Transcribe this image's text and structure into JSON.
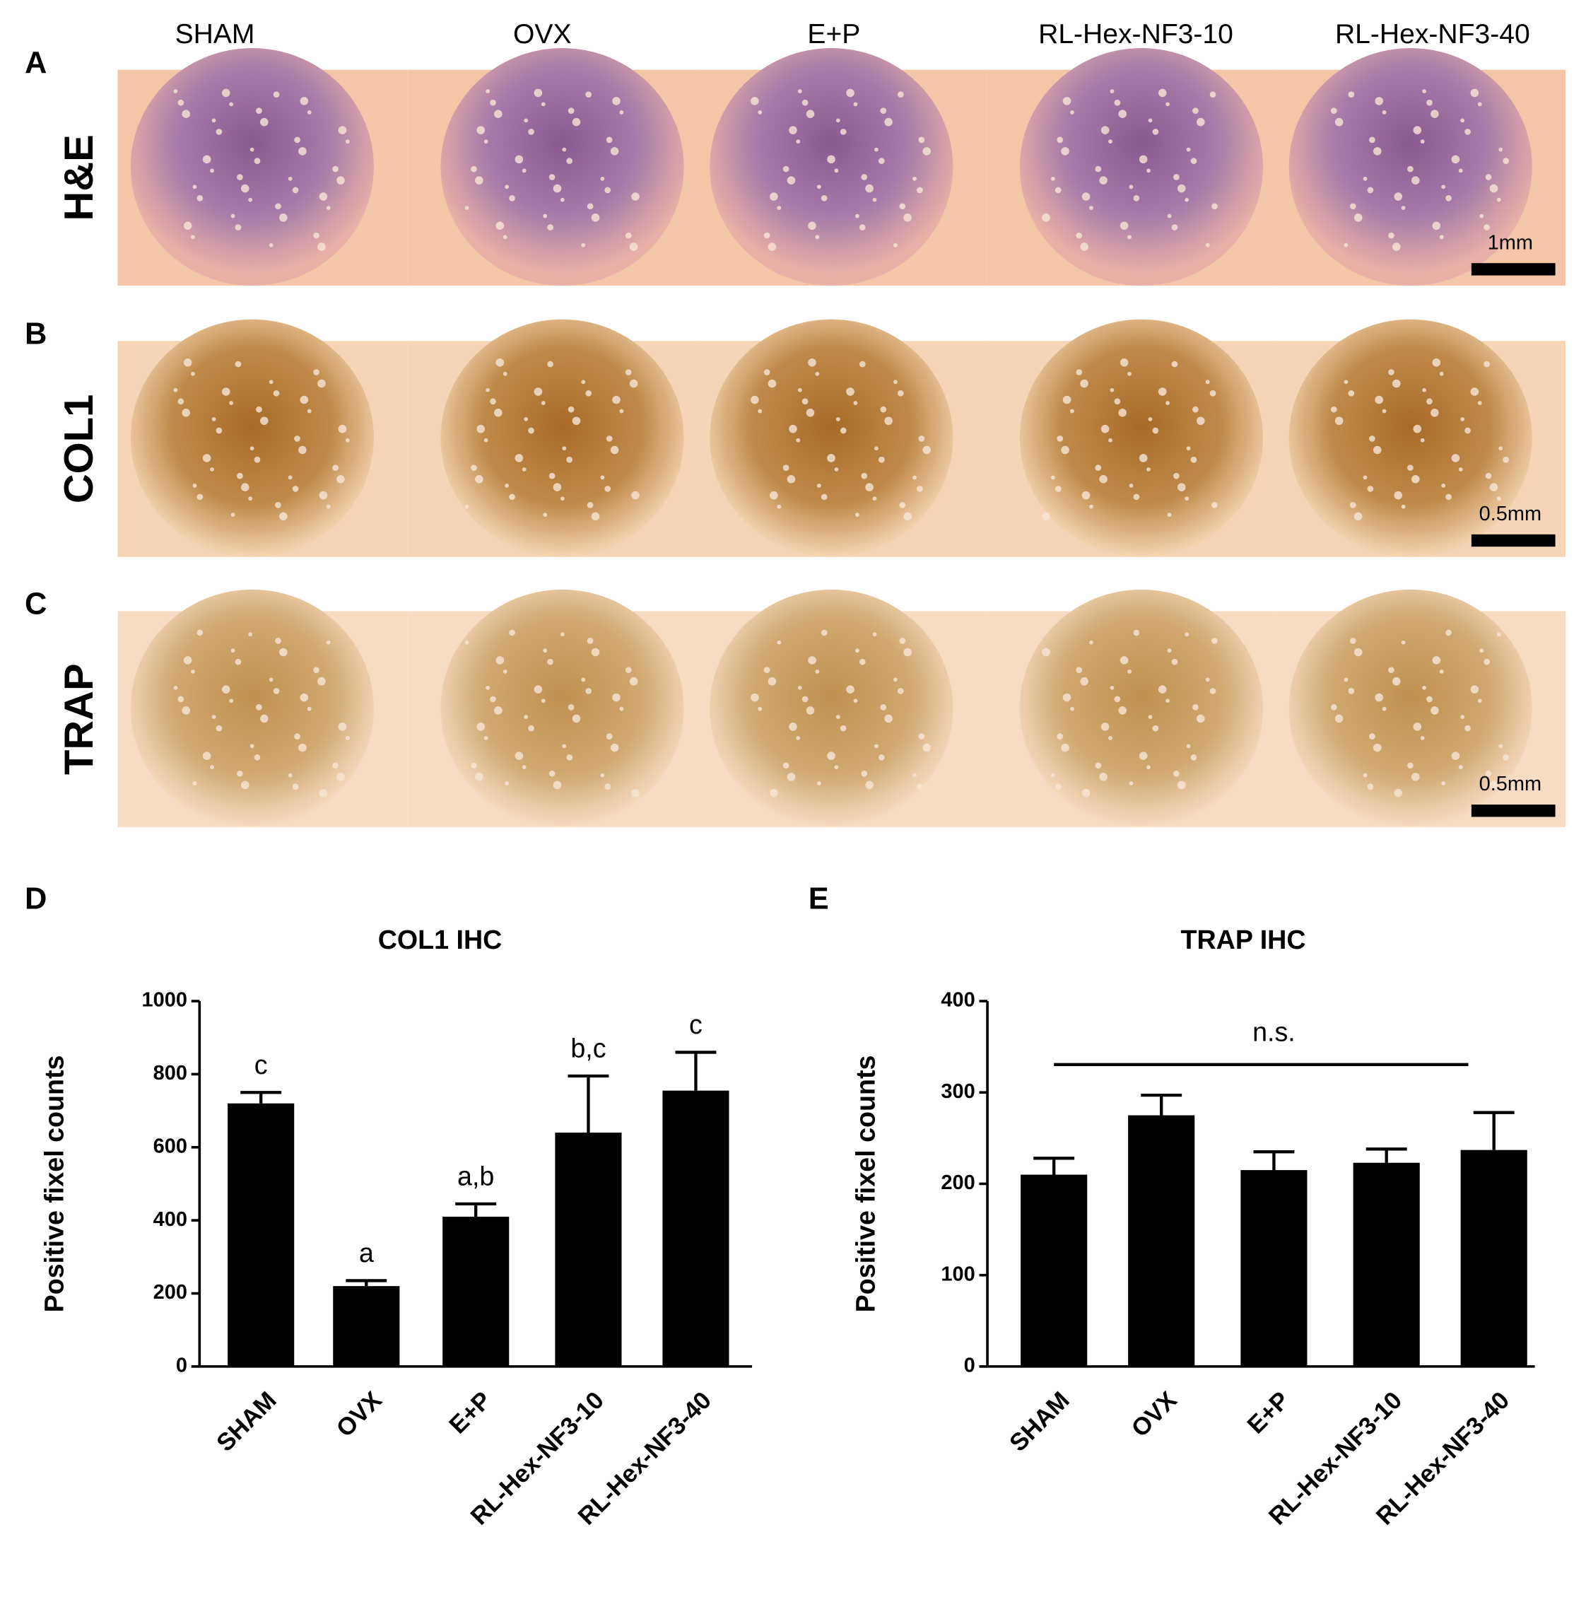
{
  "figure": {
    "columns": [
      "SHAM",
      "OVX",
      "E+P",
      "RL-Hex-NF3-10",
      "RL-Hex-NF3-40"
    ],
    "rows": [
      {
        "panel": "A",
        "label": "H&E",
        "scale": "1mm"
      },
      {
        "panel": "B",
        "label": "COL1",
        "scale": "0.5mm"
      },
      {
        "panel": "C",
        "label": "TRAP",
        "scale": "0.5mm"
      }
    ]
  },
  "chart_data": [
    {
      "type": "bar",
      "panel": "D",
      "title": "COL1 IHC",
      "y_label": "Positive fixel counts",
      "categories": [
        "SHAM",
        "OVX",
        "E+P",
        "RL-Hex-NF3-10",
        "RL-Hex-NF3-40"
      ],
      "values": [
        720,
        220,
        410,
        640,
        755
      ],
      "errors": [
        30,
        15,
        35,
        155,
        105
      ],
      "bar_labels": [
        "c",
        "a",
        "a,b",
        "b,c",
        "c"
      ],
      "color": "#000000",
      "ylim": [
        0,
        1000
      ],
      "yticks": [
        0,
        200,
        400,
        600,
        800,
        1000
      ]
    },
    {
      "type": "bar",
      "panel": "E",
      "title": "TRAP IHC",
      "y_label": "Positive fixel counts",
      "categories": [
        "SHAM",
        "OVX",
        "E+P",
        "RL-Hex-NF3-10",
        "RL-Hex-NF3-40"
      ],
      "values": [
        210,
        275,
        215,
        223,
        237
      ],
      "errors": [
        18,
        22,
        20,
        15,
        41
      ],
      "annotation": "n.s.",
      "color": "#000000",
      "ylim": [
        0,
        400
      ],
      "yticks": [
        0,
        100,
        200,
        300,
        400
      ]
    }
  ]
}
